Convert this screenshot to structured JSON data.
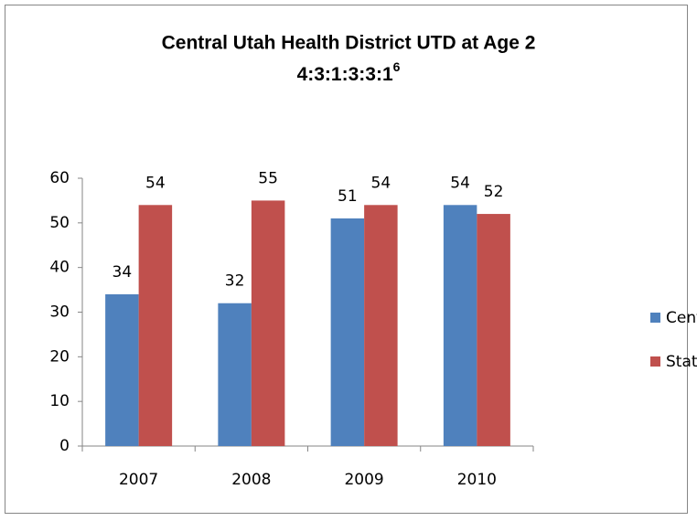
{
  "chart_data": {
    "type": "bar",
    "title": "Central Utah Health District UTD at Age 2",
    "subtitle": "4:3:1:3:3:1",
    "subtitle_superscript": "6",
    "categories": [
      "2007",
      "2008",
      "2009",
      "2010"
    ],
    "series": [
      {
        "name": "Central",
        "color": "#4f81bd",
        "values": [
          34,
          32,
          51,
          54
        ]
      },
      {
        "name": "State",
        "color": "#c0504d",
        "values": [
          54,
          55,
          54,
          52
        ]
      }
    ],
    "ylim": [
      0,
      60
    ],
    "yticks": [
      0,
      10,
      20,
      30,
      40,
      50,
      60
    ],
    "grid": false,
    "legend": "right",
    "data_labels": true
  }
}
